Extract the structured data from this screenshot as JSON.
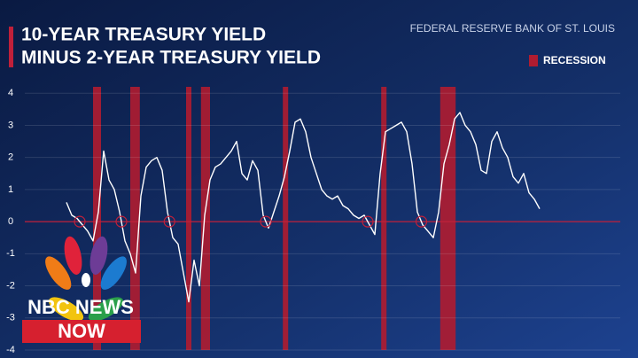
{
  "chart_data": {
    "type": "line",
    "title": "10-YEAR TREASURY YIELD",
    "subtitle": "MINUS 2-YEAR TREASURY YIELD",
    "source": "FEDERAL RESERVE BANK OF ST. LOUIS",
    "categories": [
      null,
      null,
      null,
      null,
      null,
      null,
      null,
      null,
      null,
      null,
      null,
      null,
      null,
      null,
      null,
      null,
      null,
      null,
      null,
      null,
      null,
      null,
      null,
      null,
      null,
      null,
      null,
      null,
      null,
      null,
      null,
      null,
      null,
      null,
      null,
      null,
      null,
      null,
      null,
      null,
      null,
      null,
      null,
      null,
      null,
      null,
      null,
      null,
      null,
      null,
      null,
      null,
      null,
      null,
      null,
      null,
      null,
      null,
      null,
      null,
      null,
      null,
      null,
      null,
      null,
      null,
      null,
      null,
      null,
      null,
      null,
      null,
      null,
      null,
      null,
      null,
      null,
      null,
      null,
      null,
      null,
      null,
      null,
      null,
      null,
      null,
      null,
      null,
      null,
      null
    ],
    "series": [
      {
        "color": "#ffffff",
        "values": [
          0.6,
          0.2,
          0.1,
          -0.1,
          -0.3,
          -0.6,
          0.3,
          2.2,
          1.3,
          1.0,
          0.3,
          -0.6,
          -1.0,
          -1.6,
          0.8,
          1.7,
          1.9,
          2.0,
          1.6,
          0.3,
          -0.5,
          -0.7,
          -1.6,
          -2.5,
          -1.2,
          -2.0,
          0.2,
          1.3,
          1.7,
          1.8,
          2.0,
          2.2,
          2.5,
          1.5,
          1.3,
          1.9,
          1.6,
          0.2,
          -0.2,
          0.3,
          0.8,
          1.4,
          2.2,
          3.1,
          3.2,
          2.8,
          2.0,
          1.5,
          1.0,
          0.8,
          0.7,
          0.8,
          0.5,
          0.4,
          0.2,
          0.1,
          0.2,
          -0.1,
          -0.4,
          1.5,
          2.8,
          2.9,
          3.0,
          3.1,
          2.8,
          1.8,
          0.3,
          -0.1,
          -0.3,
          -0.5,
          0.3,
          1.8,
          2.4,
          3.2,
          3.4,
          3.0,
          2.8,
          2.4,
          1.6,
          1.5,
          2.5,
          2.8,
          2.3,
          2.0,
          1.4,
          1.2,
          1.5,
          0.9,
          0.7,
          0.4
        ]
      }
    ],
    "recession_label": "RECESSION",
    "recession_color": "#b01c30",
    "recessions": [
      [
        5,
        6.5
      ],
      [
        12,
        13.8
      ],
      [
        22.5,
        23.5
      ],
      [
        25.3,
        27
      ],
      [
        40.7,
        41.7
      ],
      [
        59.2,
        60.2
      ],
      [
        70.3,
        73.2
      ]
    ],
    "zero_line_color": "#c0203a",
    "ylim": [
      -4,
      4.2
    ],
    "yticks": [
      -4,
      -3,
      -2,
      -1,
      0,
      1,
      2,
      3,
      4
    ],
    "grid": true,
    "logo": {
      "line1": "NBC NEWS",
      "line2": "NOW"
    }
  }
}
